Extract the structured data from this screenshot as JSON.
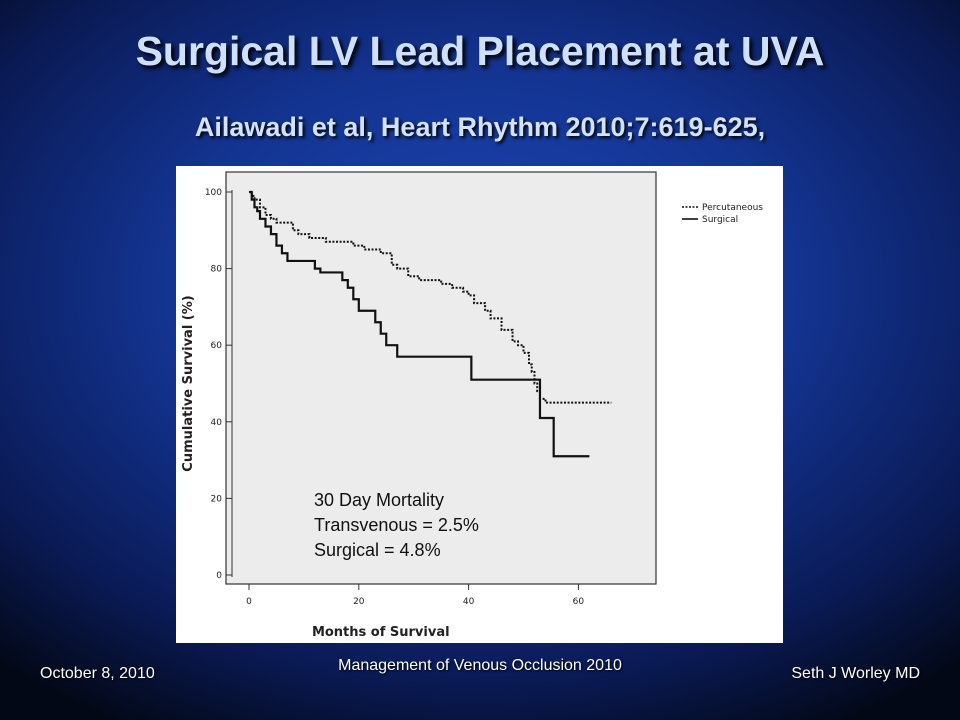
{
  "slide": {
    "title": "Surgical LV Lead Placement at UVA",
    "subtitle": "Ailawadi et al, Heart Rhythm 2010;7:619-625,",
    "footer_left": "October 8, 2010",
    "footer_center": "Management of Venous Occlusion 2010",
    "footer_right": "Seth J Worley MD"
  },
  "chart_data": {
    "type": "line",
    "xlabel": "Months of Survival",
    "ylabel": "Cumulative Survival (%)",
    "xlim": [
      0,
      70
    ],
    "ylim": [
      0,
      100
    ],
    "xticks": [
      0,
      20,
      40,
      60
    ],
    "yticks": [
      0,
      20,
      40,
      60,
      80,
      100
    ],
    "grid": false,
    "legend_position": "right, outside plot",
    "annotation": [
      "30 Day Mortality",
      "Transvenous = 2.5%",
      "Surgical = 4.8%"
    ],
    "series": [
      {
        "name": "Percutaneous",
        "style": "dotted",
        "steps": [
          [
            0,
            100
          ],
          [
            0.5,
            99
          ],
          [
            1,
            98
          ],
          [
            2,
            96
          ],
          [
            3,
            94
          ],
          [
            4,
            93
          ],
          [
            5,
            92
          ],
          [
            8,
            90
          ],
          [
            9,
            89
          ],
          [
            11,
            88
          ],
          [
            14,
            87
          ],
          [
            17,
            87
          ],
          [
            19,
            86
          ],
          [
            21,
            85
          ],
          [
            24,
            84
          ],
          [
            26,
            81
          ],
          [
            27,
            80
          ],
          [
            29,
            78
          ],
          [
            31,
            77
          ],
          [
            35,
            76
          ],
          [
            37,
            75
          ],
          [
            39,
            74
          ],
          [
            40,
            73
          ],
          [
            41,
            71
          ],
          [
            43,
            69
          ],
          [
            44,
            67
          ],
          [
            46,
            64
          ],
          [
            48,
            61
          ],
          [
            49,
            60
          ],
          [
            50,
            58
          ],
          [
            51,
            55
          ],
          [
            51.5,
            53
          ],
          [
            52,
            50
          ],
          [
            52.5,
            48
          ],
          [
            53,
            46
          ],
          [
            54,
            45
          ],
          [
            66,
            45
          ]
        ]
      },
      {
        "name": "Surgical",
        "style": "solid",
        "steps": [
          [
            0,
            100
          ],
          [
            0.5,
            98
          ],
          [
            1,
            96
          ],
          [
            1.5,
            95
          ],
          [
            2,
            93
          ],
          [
            3,
            91
          ],
          [
            4,
            89
          ],
          [
            5,
            86
          ],
          [
            6,
            84
          ],
          [
            7,
            82
          ],
          [
            11,
            82
          ],
          [
            12,
            80
          ],
          [
            13,
            79
          ],
          [
            16,
            79
          ],
          [
            17,
            77
          ],
          [
            18,
            75
          ],
          [
            19,
            72
          ],
          [
            20,
            69
          ],
          [
            22,
            69
          ],
          [
            23,
            66
          ],
          [
            24,
            63
          ],
          [
            25,
            60
          ],
          [
            27,
            57
          ],
          [
            40,
            57
          ],
          [
            40.5,
            51
          ],
          [
            52,
            51
          ],
          [
            53,
            41
          ],
          [
            55,
            41
          ],
          [
            55.5,
            31
          ],
          [
            62,
            31
          ]
        ]
      }
    ]
  }
}
